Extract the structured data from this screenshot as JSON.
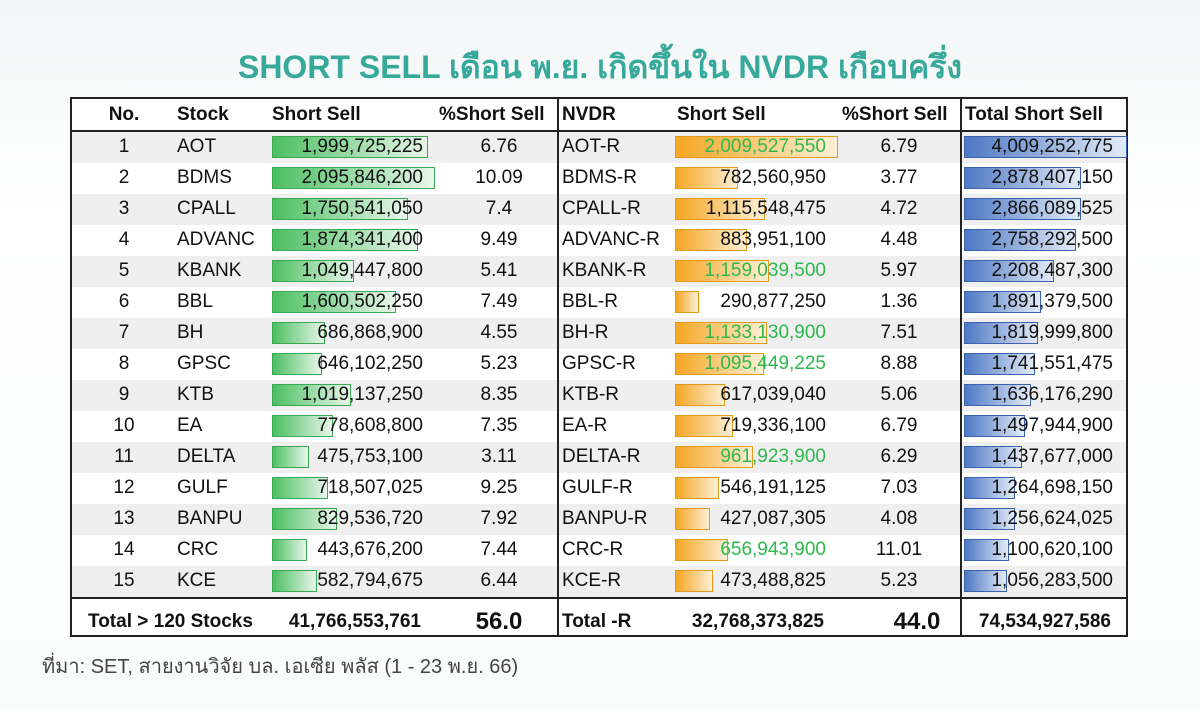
{
  "title": "SHORT SELL เดือน พ.ย. เกิดขึ้นใน NVDR เกือบครึ่ง",
  "table": {
    "header": [
      "No.",
      "Stock",
      "Short Sell",
      "%Short Sell",
      "NVDR",
      "Short Sell",
      "%Short Sell",
      "Total Short Sell"
    ],
    "rows": [
      {
        "no": "1",
        "stock": "AOT",
        "short_sell": {
          "value": 1999725225,
          "label": "1,999,725,225"
        },
        "pct": "6.76",
        "nvdr": "AOT-R",
        "nvdr_short_sell": {
          "value": 2009527550,
          "label": "2,009,527,550",
          "color": "#2eb84c"
        },
        "nvdr_pct": "6.79",
        "total": {
          "value": 4009252775,
          "label": "4,009,252,775"
        }
      },
      {
        "no": "2",
        "stock": "BDMS",
        "short_sell": {
          "value": 2095846200,
          "label": "2,095,846,200"
        },
        "pct": "10.09",
        "nvdr": "BDMS-R",
        "nvdr_short_sell": {
          "value": 782560950,
          "label": "782,560,950"
        },
        "nvdr_pct": "3.77",
        "total": {
          "value": 2878407150,
          "label": "2,878,407,150"
        }
      },
      {
        "no": "3",
        "stock": "CPALL",
        "short_sell": {
          "value": 1750541050,
          "label": "1,750,541,050"
        },
        "pct": "7.4",
        "nvdr": "CPALL-R",
        "nvdr_short_sell": {
          "value": 1115548475,
          "label": "1,115,548,475"
        },
        "nvdr_pct": "4.72",
        "total": {
          "value": 2866089525,
          "label": "2,866,089,525"
        }
      },
      {
        "no": "4",
        "stock": "ADVANC",
        "short_sell": {
          "value": 1874341400,
          "label": "1,874,341,400"
        },
        "pct": "9.49",
        "nvdr": "ADVANC-R",
        "nvdr_short_sell": {
          "value": 883951100,
          "label": "883,951,100"
        },
        "nvdr_pct": "4.48",
        "total": {
          "value": 2758292500,
          "label": "2,758,292,500"
        }
      },
      {
        "no": "5",
        "stock": "KBANK",
        "short_sell": {
          "value": 1049447800,
          "label": "1,049,447,800"
        },
        "pct": "5.41",
        "nvdr": "KBANK-R",
        "nvdr_short_sell": {
          "value": 1159039500,
          "label": "1,159,039,500",
          "color": "#2eb84c"
        },
        "nvdr_pct": "5.97",
        "total": {
          "value": 2208487300,
          "label": "2,208,487,300"
        }
      },
      {
        "no": "6",
        "stock": "BBL",
        "short_sell": {
          "value": 1600502250,
          "label": "1,600,502,250"
        },
        "pct": "7.49",
        "nvdr": "BBL-R",
        "nvdr_short_sell": {
          "value": 290877250,
          "label": "290,877,250"
        },
        "nvdr_pct": "1.36",
        "total": {
          "value": 1891379500,
          "label": "1,891,379,500"
        }
      },
      {
        "no": "7",
        "stock": "BH",
        "short_sell": {
          "value": 686868900,
          "label": "686,868,900"
        },
        "pct": "4.55",
        "nvdr": "BH-R",
        "nvdr_short_sell": {
          "value": 1133130900,
          "label": "1,133,130,900",
          "color": "#2eb84c"
        },
        "nvdr_pct": "7.51",
        "total": {
          "value": 1819999800,
          "label": "1,819,999,800"
        }
      },
      {
        "no": "8",
        "stock": "GPSC",
        "short_sell": {
          "value": 646102250,
          "label": "646,102,250"
        },
        "pct": "5.23",
        "nvdr": "GPSC-R",
        "nvdr_short_sell": {
          "value": 1095449225,
          "label": "1,095,449,225",
          "color": "#2eb84c"
        },
        "nvdr_pct": "8.88",
        "total": {
          "value": 1741551475,
          "label": "1,741,551,475"
        }
      },
      {
        "no": "9",
        "stock": "KTB",
        "short_sell": {
          "value": 1019137250,
          "label": "1,019,137,250"
        },
        "pct": "8.35",
        "nvdr": "KTB-R",
        "nvdr_short_sell": {
          "value": 617039040,
          "label": "617,039,040"
        },
        "nvdr_pct": "5.06",
        "total": {
          "value": 1636176290,
          "label": "1,636,176,290"
        }
      },
      {
        "no": "10",
        "stock": "EA",
        "short_sell": {
          "value": 778608800,
          "label": "778,608,800"
        },
        "pct": "7.35",
        "nvdr": "EA-R",
        "nvdr_short_sell": {
          "value": 719336100,
          "label": "719,336,100"
        },
        "nvdr_pct": "6.79",
        "total": {
          "value": 1497944900,
          "label": "1,497,944,900"
        }
      },
      {
        "no": "11",
        "stock": "DELTA",
        "short_sell": {
          "value": 475753100,
          "label": "475,753,100"
        },
        "pct": "3.11",
        "nvdr": "DELTA-R",
        "nvdr_short_sell": {
          "value": 961923900,
          "label": "961,923,900",
          "color": "#2eb84c"
        },
        "nvdr_pct": "6.29",
        "total": {
          "value": 1437677000,
          "label": "1,437,677,000"
        }
      },
      {
        "no": "12",
        "stock": "GULF",
        "short_sell": {
          "value": 718507025,
          "label": "718,507,025"
        },
        "pct": "9.25",
        "nvdr": "GULF-R",
        "nvdr_short_sell": {
          "value": 546191125,
          "label": "546,191,125"
        },
        "nvdr_pct": "7.03",
        "total": {
          "value": 1264698150,
          "label": "1,264,698,150"
        }
      },
      {
        "no": "13",
        "stock": "BANPU",
        "short_sell": {
          "value": 829536720,
          "label": "829,536,720"
        },
        "pct": "7.92",
        "nvdr": "BANPU-R",
        "nvdr_short_sell": {
          "value": 427087305,
          "label": "427,087,305"
        },
        "nvdr_pct": "4.08",
        "total": {
          "value": 1256624025,
          "label": "1,256,624,025"
        }
      },
      {
        "no": "14",
        "stock": "CRC",
        "short_sell": {
          "value": 443676200,
          "label": "443,676,200"
        },
        "pct": "7.44",
        "nvdr": "CRC-R",
        "nvdr_short_sell": {
          "value": 656943900,
          "label": "656,943,900",
          "color": "#2eb84c"
        },
        "nvdr_pct": "11.01",
        "total": {
          "value": 1100620100,
          "label": "1,100,620,100"
        }
      },
      {
        "no": "15",
        "stock": "KCE",
        "short_sell": {
          "value": 582794675,
          "label": "582,794,675"
        },
        "pct": "6.44",
        "nvdr": "KCE-R",
        "nvdr_short_sell": {
          "value": 473488825,
          "label": "473,488,825"
        },
        "nvdr_pct": "5.23",
        "total": {
          "value": 1056283500,
          "label": "1,056,283,500"
        }
      }
    ],
    "total": {
      "label": "Total > 120 Stocks",
      "short_sell": "41,766,553,761",
      "pct": "56.0",
      "nvdr_label": "Total -R",
      "nvdr_short_sell": "32,768,373,825",
      "nvdr_pct": "44.0",
      "total": "74,534,927,586"
    }
  },
  "source": "ที่มา: SET, สายงานวิจัย บล. เอเซีย พลัส  (1 - 23 พ.ย. 66)"
}
